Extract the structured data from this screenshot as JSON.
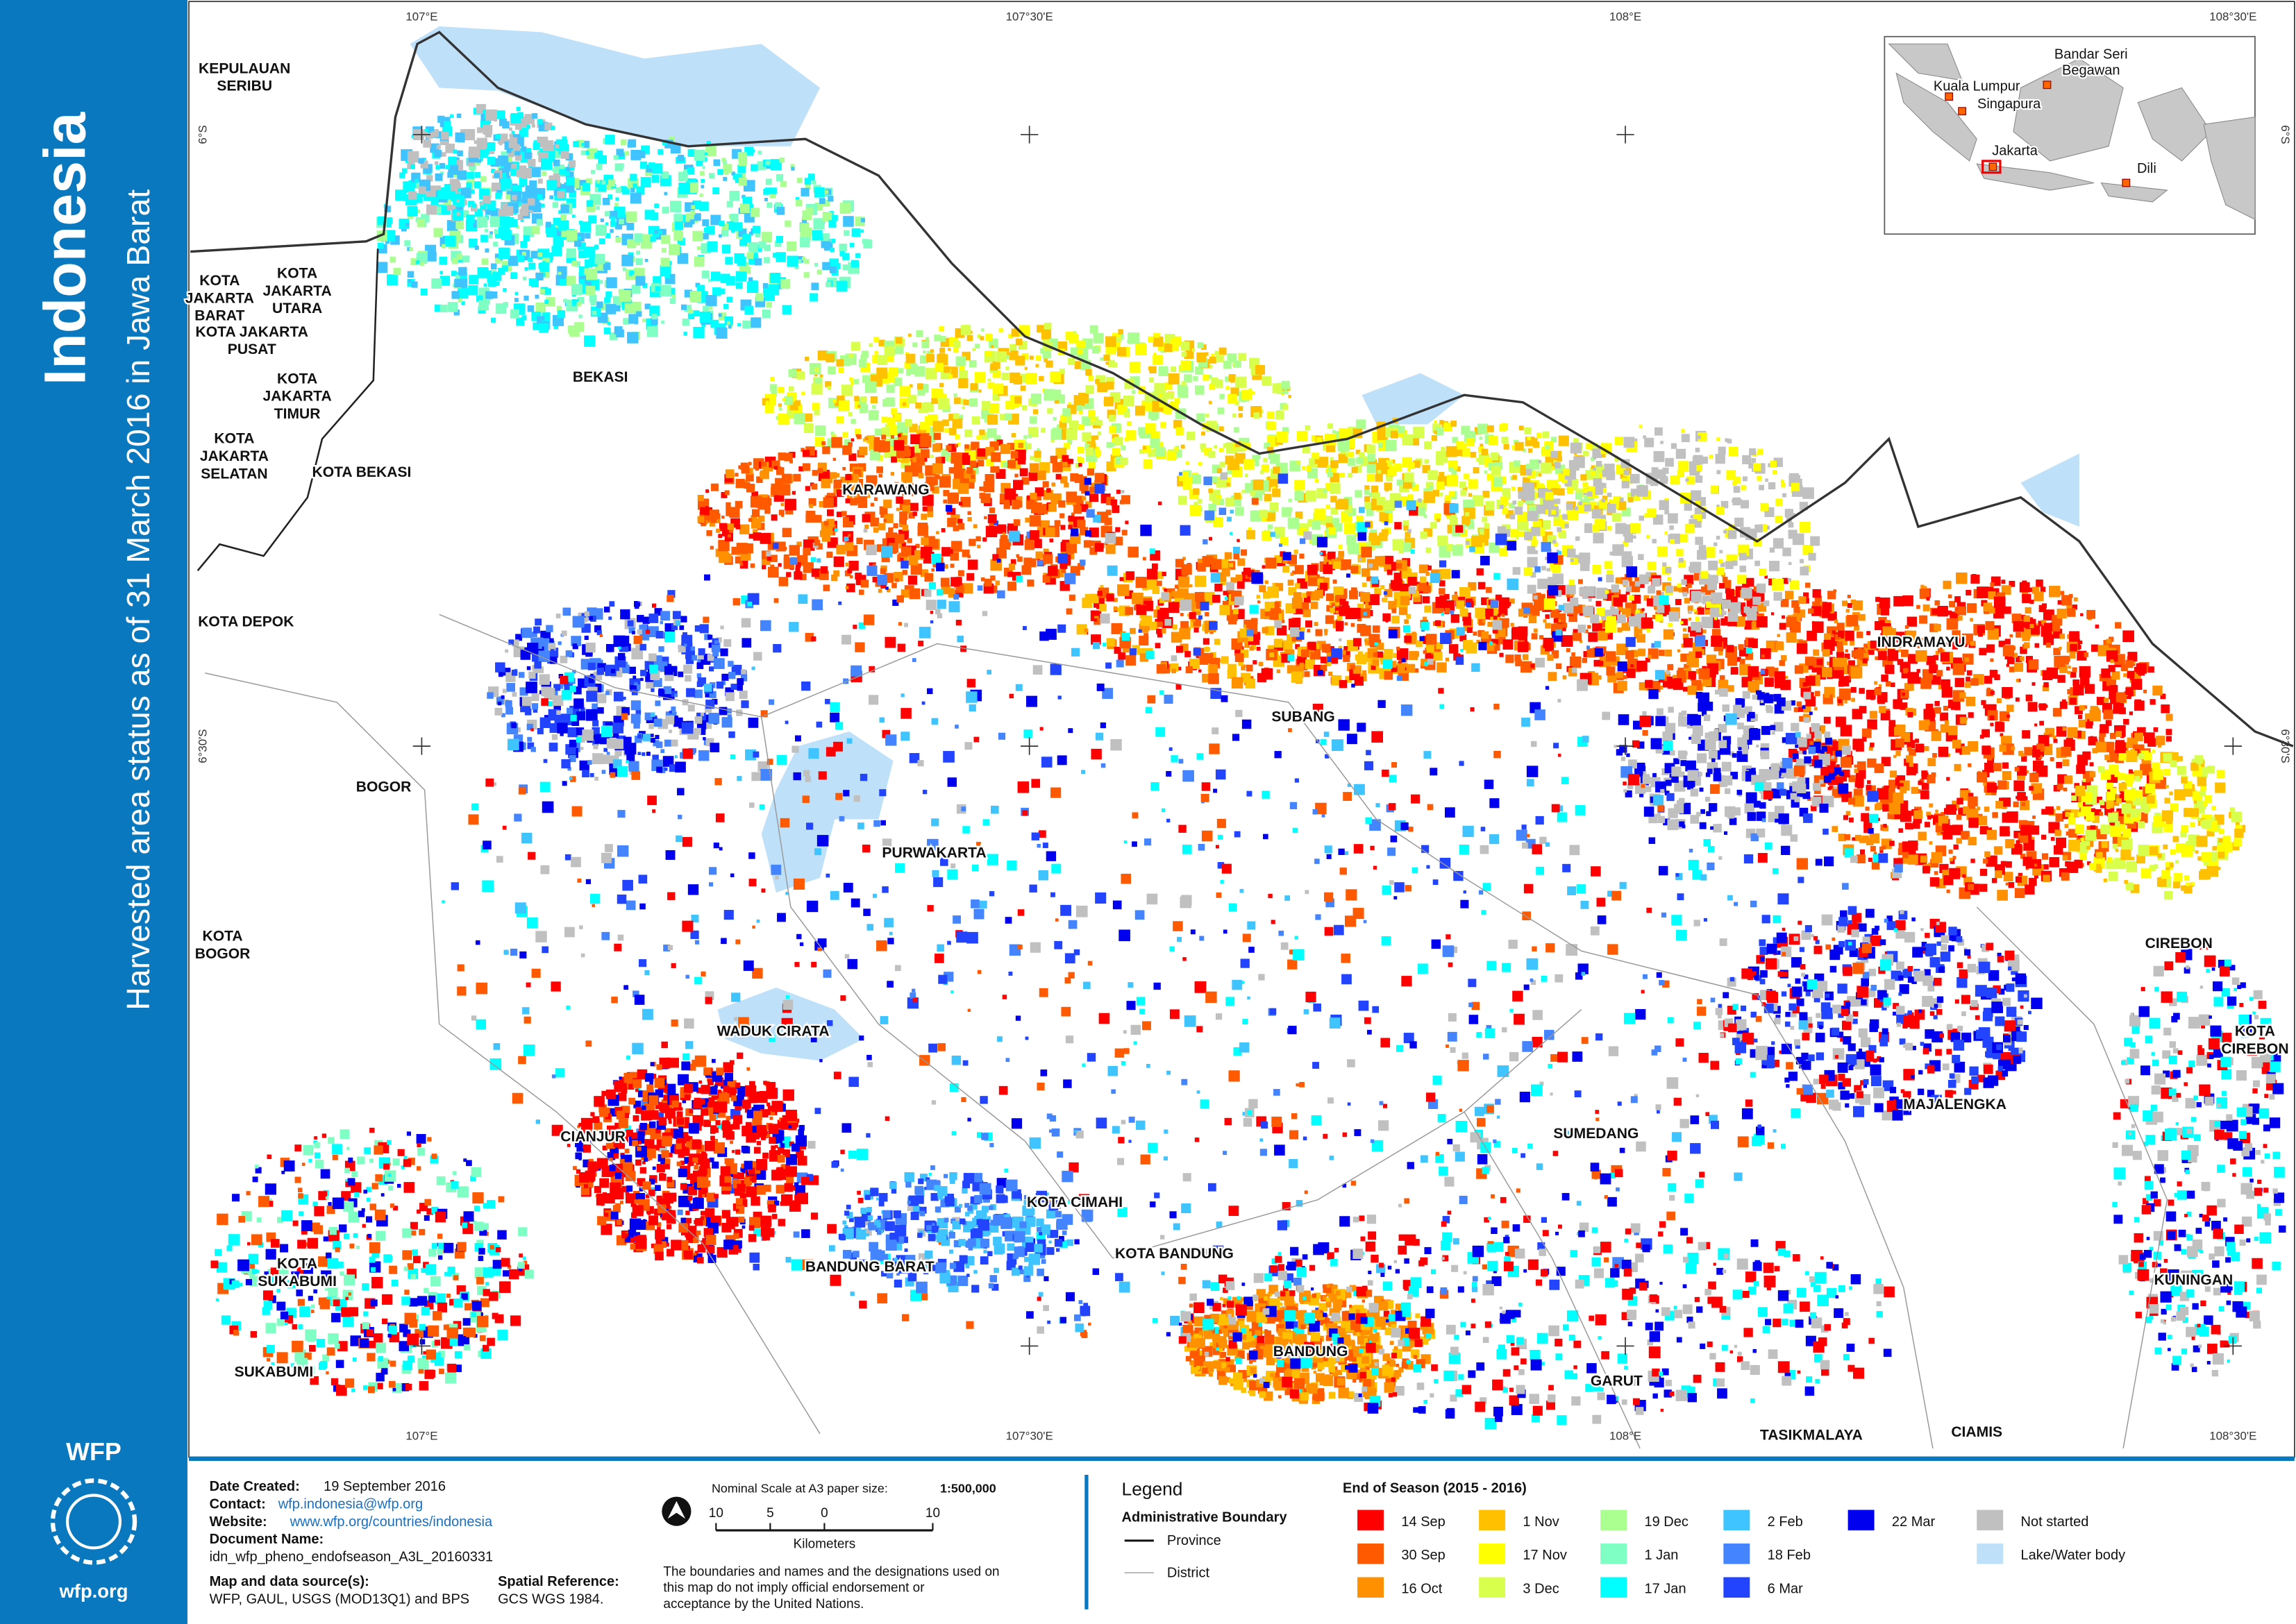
{
  "sidebar": {
    "title": "Indonesia",
    "subtitle": "Harvested area status as of 31 March 2016 in Jawa Barat",
    "logo": "WFP",
    "url": "wfp.org"
  },
  "graticule": {
    "top": [
      "107°E",
      "107°30'E",
      "108°E",
      "108°30'E"
    ],
    "bottom": [
      "107°E",
      "107°30'E",
      "108°E",
      "108°30'E"
    ],
    "left": [
      "6°S",
      "6°30'S"
    ],
    "right": [
      "6°S",
      "6°30'S"
    ]
  },
  "map_labels": [
    [
      "KEPULAUAN",
      "SERIBU"
    ],
    [
      "KOTA",
      "JAKARTA",
      "BARAT"
    ],
    [
      "KOTA",
      "JAKARTA",
      "UTARA"
    ],
    [
      "KOTA JAKARTA",
      "PUSAT"
    ],
    [
      "KOTA",
      "JAKARTA",
      "TIMUR"
    ],
    [
      "KOTA",
      "JAKARTA",
      "SELATAN"
    ],
    [
      "KOTA BEKASI"
    ],
    [
      "BEKASI"
    ],
    [
      "KARAWANG"
    ],
    [
      "KOTA DEPOK"
    ],
    [
      "SUBANG"
    ],
    [
      "INDRAMAYU"
    ],
    [
      "BOGOR"
    ],
    [
      "PURWAKARTA"
    ],
    [
      "KOTA",
      "BOGOR"
    ],
    [
      "CIREBON"
    ],
    [
      "WADUK CIRATA"
    ],
    [
      "KOTA",
      "CIREBON"
    ],
    [
      "CIANJUR"
    ],
    [
      "SUMEDANG"
    ],
    [
      "MAJALENGKA"
    ],
    [
      "KOTA CIMAHI"
    ],
    [
      "KOTA BANDUNG"
    ],
    [
      "KOTA",
      "SUKABUMI"
    ],
    [
      "BANDUNG BARAT"
    ],
    [
      "KUNINGAN"
    ],
    [
      "BANDUNG"
    ],
    [
      "SUKABUMI"
    ],
    [
      "GARUT"
    ],
    [
      "TASIKMALAYA"
    ],
    [
      "CIAMIS"
    ]
  ],
  "inset_labels": [
    [
      "Bandar Seri",
      "Begawan"
    ],
    [
      "Kuala Lumpur"
    ],
    [
      "Singapura"
    ],
    [
      "Jakarta"
    ],
    [
      "Dili"
    ]
  ],
  "info": [
    {
      "label": "Date Created:",
      "value": "19 September 2016"
    },
    {
      "label": "Contact:",
      "value": "wfp.indonesia@wfp.org"
    },
    {
      "label": "Website:",
      "value": "www.wfp.org/countries/indonesia"
    },
    {
      "label": "Document Name:",
      "value": "idn_wfp_pheno_endofseason_A3L_20160331"
    },
    {
      "label": "Map and data source(s):",
      "value": "WFP, GAUL, USGS (MOD13Q1) and BPS"
    },
    {
      "label": "Spatial Reference:",
      "value": "GCS WGS 1984."
    }
  ],
  "scale": {
    "caption": "Nominal Scale at A3 paper size:",
    "ratio": "1:500,000",
    "ticks": [
      "10",
      "5",
      "0",
      "10"
    ],
    "unit": "Kilometers"
  },
  "disclaimer": [
    "The boundaries and names and the designations used on",
    "this map do not imply official endorsement or",
    "acceptance by the United Nations."
  ],
  "legend": {
    "title": "Legend",
    "admin_title": "Administrative Boundary",
    "admin": [
      "Province",
      "District"
    ],
    "season_title": "End of Season (2015 - 2016)",
    "classes": [
      {
        "label": "14 Sep",
        "color": "#ff0000"
      },
      {
        "label": "30 Sep",
        "color": "#ff5a00"
      },
      {
        "label": "16 Oct",
        "color": "#ff9000"
      },
      {
        "label": "1 Nov",
        "color": "#ffc000"
      },
      {
        "label": "17 Nov",
        "color": "#ffff00"
      },
      {
        "label": "3 Dec",
        "color": "#d8ff4c"
      },
      {
        "label": "19 Dec",
        "color": "#aaff90"
      },
      {
        "label": "1 Jan",
        "color": "#80ffc4"
      },
      {
        "label": "17 Jan",
        "color": "#00ffff"
      },
      {
        "label": "2 Feb",
        "color": "#40c4ff"
      },
      {
        "label": "18 Feb",
        "color": "#4484ff"
      },
      {
        "label": "6 Mar",
        "color": "#2244ff"
      },
      {
        "label": "22 Mar",
        "color": "#0000ee"
      },
      {
        "label": "Not started",
        "color": "#c0c0c0"
      },
      {
        "label": "Lake/Water body",
        "color": "#bee0f8"
      }
    ]
  }
}
